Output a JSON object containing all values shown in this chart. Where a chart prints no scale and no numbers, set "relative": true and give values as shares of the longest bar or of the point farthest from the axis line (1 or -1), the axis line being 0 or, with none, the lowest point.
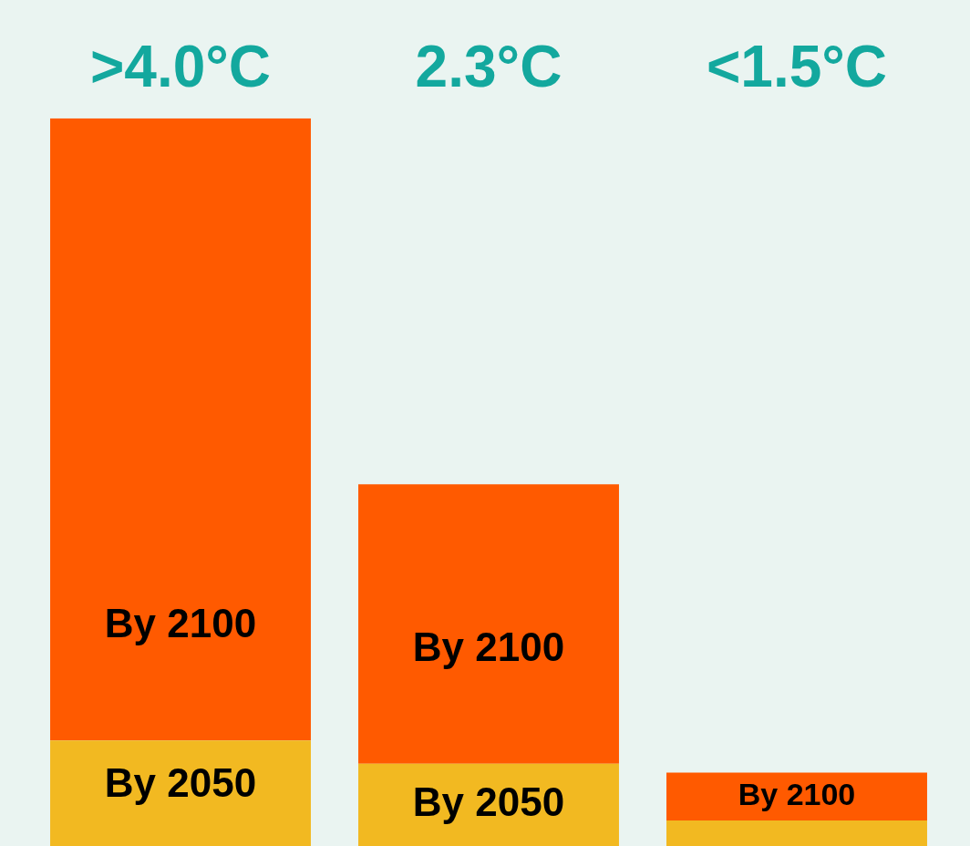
{
  "chart_data": {
    "type": "bar",
    "relative": true,
    "stacked": true,
    "categories": [
      ">4.0°C",
      "2.3°C",
      "<1.5°C"
    ],
    "legend": false,
    "grid": false,
    "series": [
      {
        "name": "By 2050",
        "color": "#f2b921",
        "values": [
          0.145,
          0.113,
          0.035
        ]
      },
      {
        "name": "By 2100",
        "color": "#ff5a00",
        "values": [
          0.855,
          0.384,
          0.066
        ]
      }
    ]
  }
}
